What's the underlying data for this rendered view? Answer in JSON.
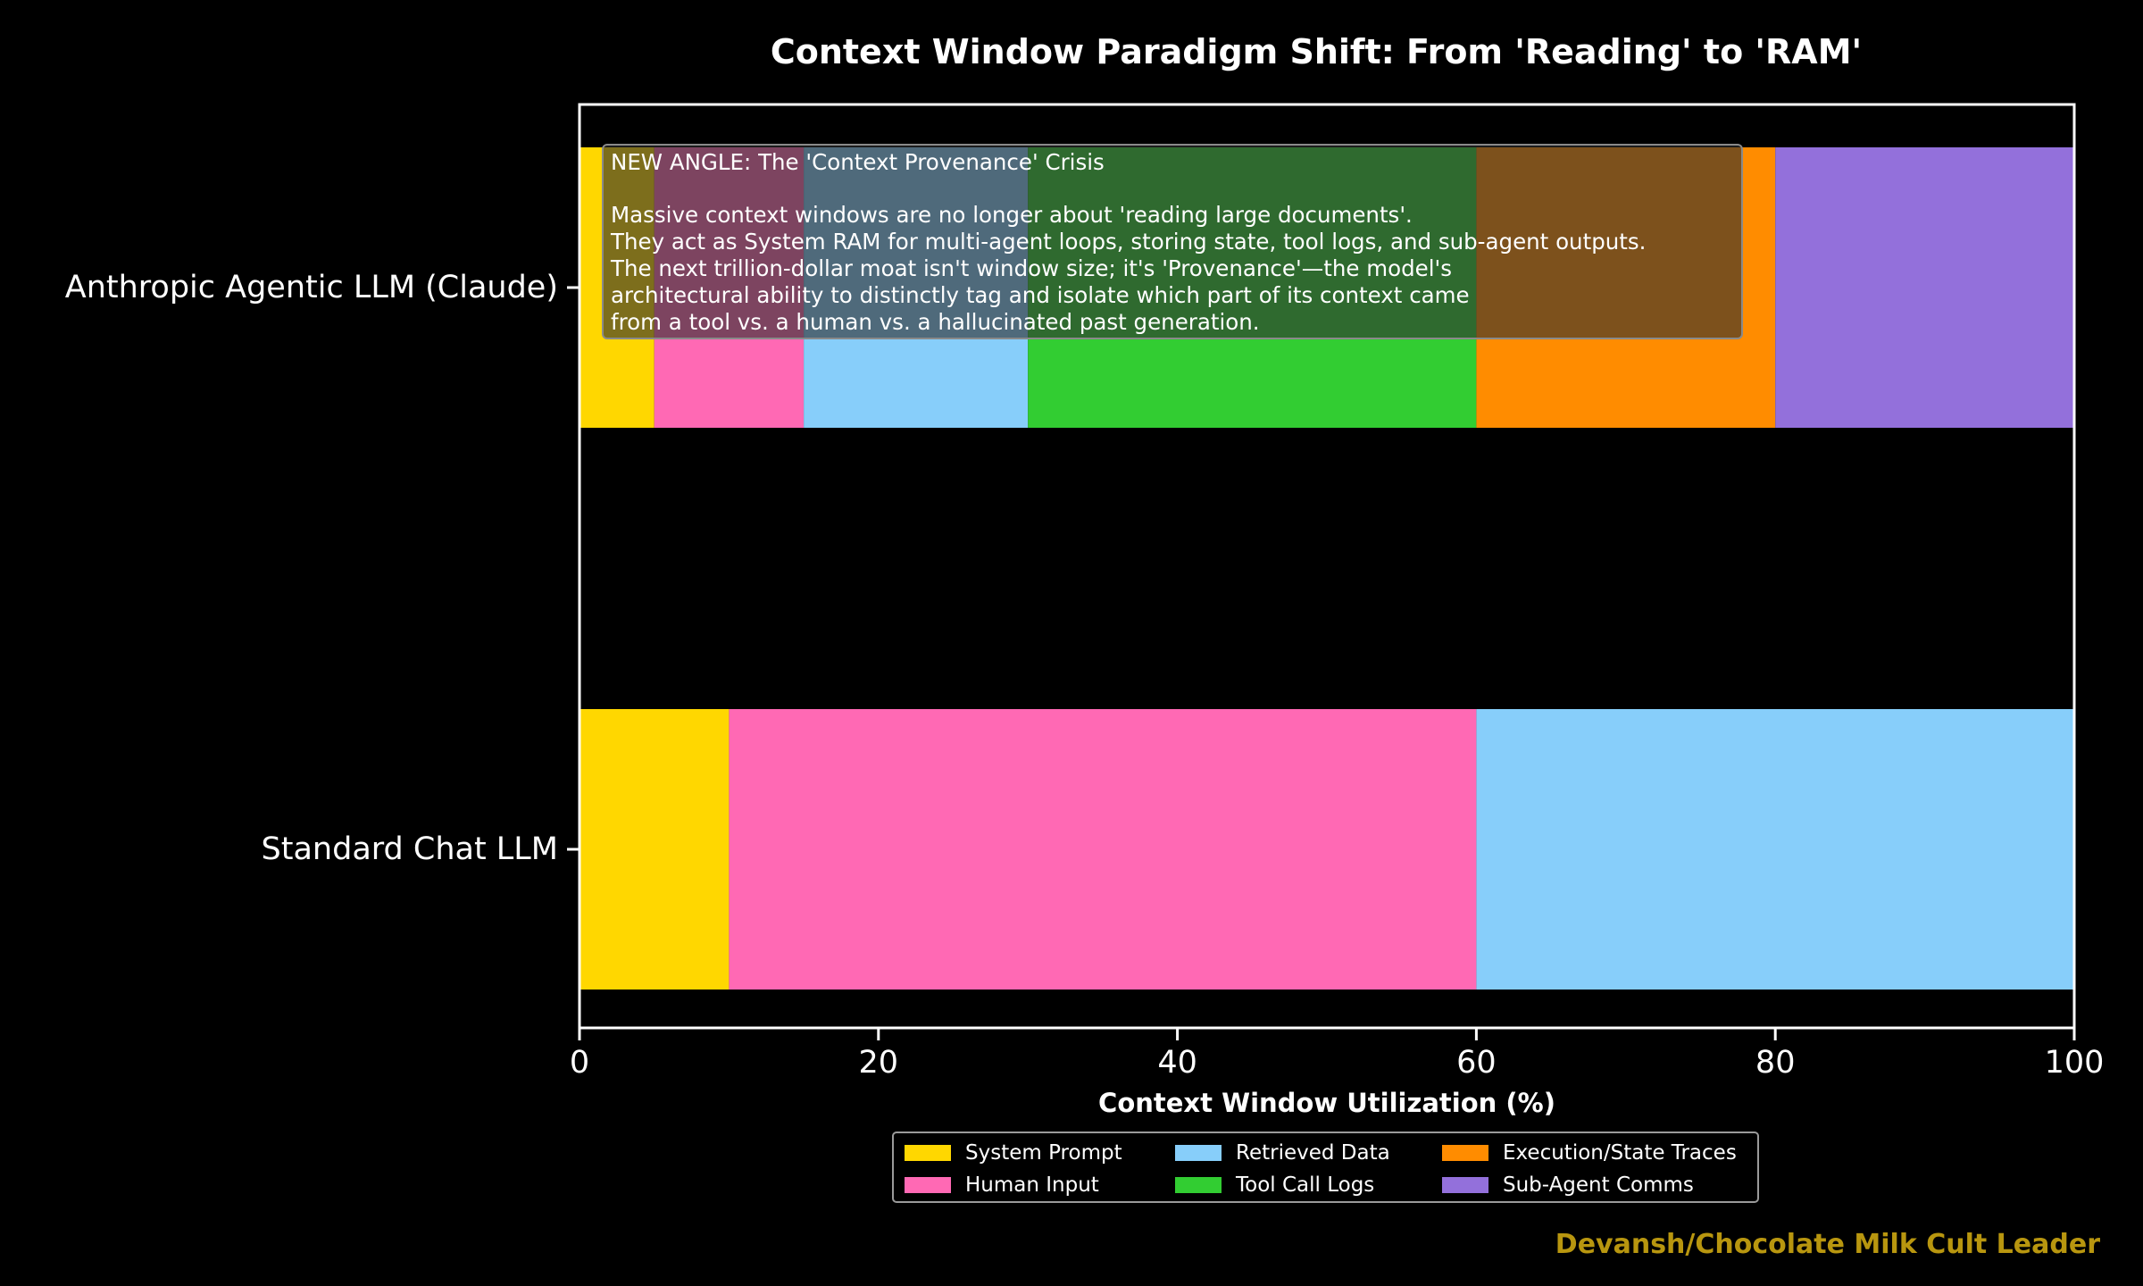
{
  "chart_data": {
    "type": "bar",
    "orientation": "horizontal",
    "stacked": true,
    "title": "Context Window Paradigm Shift: From 'Reading' to 'RAM'",
    "xlabel": "Context Window Utilization (%)",
    "ylabel": "",
    "xlim": [
      0,
      100
    ],
    "x_ticks": [
      0,
      20,
      40,
      60,
      80,
      100
    ],
    "grid": false,
    "legend_position": "bottom-center",
    "categories": [
      "Anthropic Agentic LLM (Claude)",
      "Standard Chat LLM"
    ],
    "series": [
      {
        "name": "System Prompt",
        "color": "#ffd700",
        "values": [
          5,
          10
        ]
      },
      {
        "name": "Human Input",
        "color": "#ff69b4",
        "values": [
          10,
          50
        ]
      },
      {
        "name": "Retrieved Data",
        "color": "#87cefa",
        "values": [
          15,
          40
        ]
      },
      {
        "name": "Tool Call Logs",
        "color": "#32cd32",
        "values": [
          30,
          0
        ]
      },
      {
        "name": "Execution/State Traces",
        "color": "#ff8c00",
        "values": [
          20,
          0
        ]
      },
      {
        "name": "Sub-Agent Comms",
        "color": "#9370db",
        "values": [
          20,
          0
        ]
      }
    ],
    "annotation": {
      "lines": [
        "NEW ANGLE: The 'Context Provenance' Crisis",
        "",
        "Massive context windows are no longer about 'reading large documents'.",
        "They act as System RAM for multi-agent loops, storing state, tool logs, and sub-agent outputs.",
        "The next trillion-dollar moat isn't window size; it's 'Provenance'—the model's",
        "architectural ability to distinctly tag and isolate which part of its context came",
        "from a tool vs. a human vs. a hallucinated past generation."
      ]
    },
    "credit": "Devansh/Chocolate Milk Cult Leader"
  }
}
